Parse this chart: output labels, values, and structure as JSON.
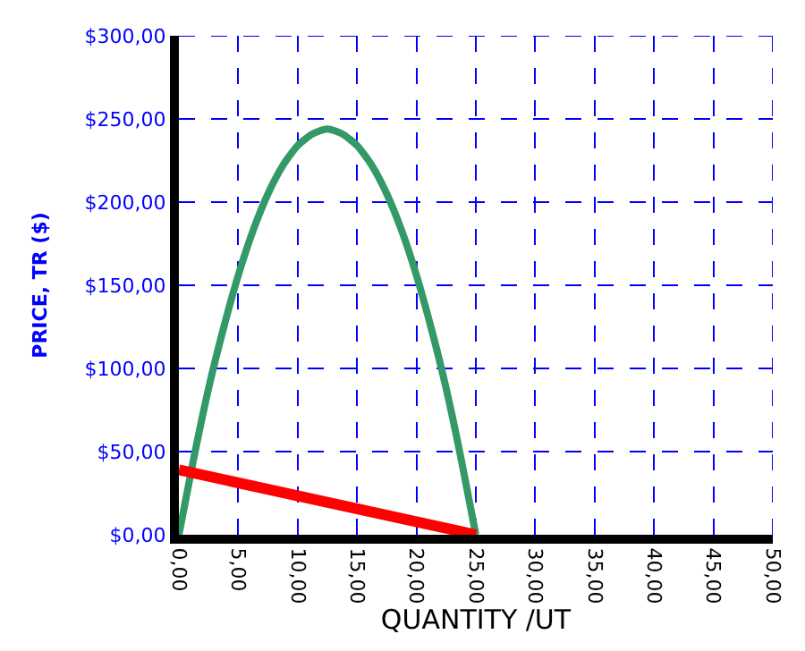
{
  "chart_data": {
    "type": "line",
    "xlabel": "QUANTITY /UT",
    "ylabel": "PRICE, TR ($)",
    "series": [
      {
        "color": "#339966",
        "x": [
          0,
          1.25,
          2.5,
          3.75,
          5,
          6.25,
          7.5,
          8.75,
          10,
          11.25,
          12.5,
          13.75,
          15,
          16.25,
          17.5,
          18.75,
          20,
          21.25,
          22.5,
          23.75,
          25
        ],
        "values": [
          0,
          46,
          88,
          124,
          156,
          183,
          205,
          222,
          234,
          241,
          244,
          241,
          234,
          222,
          205,
          183,
          156,
          124,
          88,
          46,
          0
        ]
      },
      {
        "color": "#ff0000",
        "x": [
          0,
          25
        ],
        "values": [
          39,
          0
        ]
      }
    ],
    "xlim": [
      0,
      50
    ],
    "ylim": [
      0,
      300
    ],
    "xticks": [
      {
        "value": 0,
        "label": "0,00"
      },
      {
        "value": 5,
        "label": "5,00"
      },
      {
        "value": 10,
        "label": "10,00"
      },
      {
        "value": 15,
        "label": "15,00"
      },
      {
        "value": 20,
        "label": "20,00"
      },
      {
        "value": 25,
        "label": "25,00"
      },
      {
        "value": 30,
        "label": "30,00"
      },
      {
        "value": 35,
        "label": "35,00"
      },
      {
        "value": 40,
        "label": "40,00"
      },
      {
        "value": 45,
        "label": "45,00"
      },
      {
        "value": 50,
        "label": "50,00"
      }
    ],
    "yticks": [
      {
        "value": 0,
        "label": "$0,00"
      },
      {
        "value": 50,
        "label": "$50,00"
      },
      {
        "value": 100,
        "label": "$100,00"
      },
      {
        "value": 150,
        "label": "$150,00"
      },
      {
        "value": 200,
        "label": "$200,00"
      },
      {
        "value": 250,
        "label": "$250,00"
      },
      {
        "value": 300,
        "label": "$300,00"
      }
    ],
    "grid": true,
    "marker": "none",
    "line_style": "solid"
  }
}
